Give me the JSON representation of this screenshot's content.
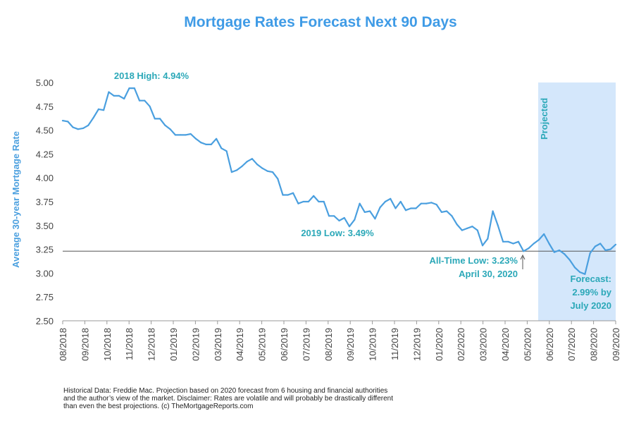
{
  "chart_data": {
    "type": "line",
    "title": "Mortgage Rates Forecast Next 90 Days",
    "ylabel": "Average 30-year Mortgage Rate",
    "xlabel": "",
    "ylim": [
      2.5,
      5.0
    ],
    "y_ticks": [
      "2.50",
      "2.75",
      "3.00",
      "3.25",
      "3.50",
      "3.75",
      "4.00",
      "4.25",
      "4.50",
      "4.75",
      "5.00"
    ],
    "x_ticks": [
      "08/2018",
      "09/2018",
      "10/2018",
      "11/2018",
      "12/2018",
      "01/2019",
      "02/2019",
      "03/2019",
      "04/2019",
      "05/2019",
      "06/2019",
      "07/2019",
      "08/2019",
      "09/2019",
      "10/2019",
      "11/2019",
      "12/2019",
      "01/2020",
      "02/2020",
      "03/2020",
      "04/2020",
      "05/2020",
      "06/2020",
      "07/2020",
      "08/2020",
      "09/2020"
    ],
    "grid": false,
    "colors": {
      "line": "#4a9fdf",
      "title": "#3f9be6",
      "annotation": "#2ba8b8",
      "projected_band": "#d4e7fb",
      "reference_line": "#555555"
    },
    "series": [
      {
        "values": [
          4.6,
          4.59,
          4.53,
          4.51,
          4.52,
          4.55,
          4.63,
          4.72,
          4.71,
          4.9,
          4.86,
          4.86,
          4.83,
          4.94,
          4.94,
          4.81,
          4.81,
          4.75,
          4.62,
          4.62,
          4.55,
          4.51,
          4.45,
          4.45,
          4.45,
          4.46,
          4.41,
          4.37,
          4.35,
          4.35,
          4.41,
          4.31,
          4.28,
          4.06,
          4.08,
          4.12,
          4.17,
          4.2,
          4.14,
          4.1,
          4.07,
          4.06,
          3.99,
          3.82,
          3.82,
          3.84,
          3.73,
          3.75,
          3.75,
          3.81,
          3.75,
          3.75,
          3.6,
          3.6,
          3.55,
          3.58,
          3.49,
          3.56,
          3.73,
          3.64,
          3.65,
          3.57,
          3.69,
          3.75,
          3.78,
          3.68,
          3.75,
          3.66,
          3.68,
          3.68,
          3.73,
          3.73,
          3.74,
          3.72,
          3.64,
          3.65,
          3.6,
          3.51,
          3.45,
          3.47,
          3.49,
          3.45,
          3.29,
          3.36,
          3.65,
          3.5,
          3.33,
          3.33,
          3.31,
          3.33,
          3.23,
          3.26,
          3.31,
          3.35,
          3.41,
          3.31,
          3.22,
          3.24,
          3.2,
          3.14,
          3.06,
          3.01,
          2.99,
          3.21,
          3.28,
          3.31,
          3.24,
          3.25,
          3.3
        ]
      }
    ],
    "projected_label": "Projected",
    "reference_value": 3.23,
    "annotations": {
      "high_2018": "2018 High: 4.94%",
      "low_2019": "2019 Low: 3.49%",
      "alltime_low_line1": "All-Time Low: 3.23%",
      "alltime_low_line2": "April 30, 2020",
      "forecast_line1": "Forecast:",
      "forecast_line2": "2.99% by",
      "forecast_line3": "July 2020"
    }
  },
  "footnote": {
    "line1": "Historical Data: Freddie Mac.  Projection based on 2020 forecast from 6 housing and financial authorities",
    "line2": "and the author’s view of the market. Disclaimer: Rates are volatile and will probably be drastically different",
    "line3": "than even the best projections. (c) TheMortgageReports.com"
  }
}
